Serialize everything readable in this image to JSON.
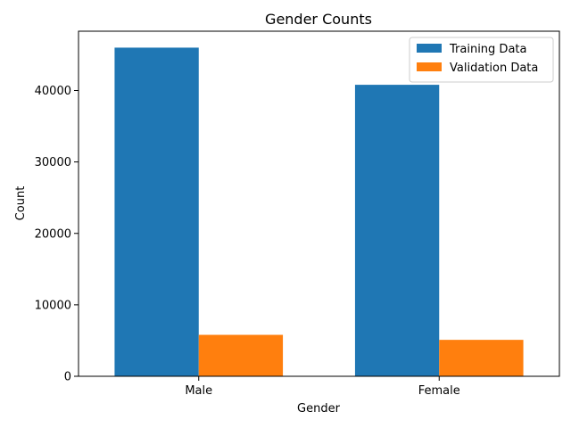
{
  "chart_data": {
    "type": "bar",
    "title": "Gender Counts",
    "xlabel": "Gender",
    "ylabel": "Count",
    "categories": [
      "Male",
      "Female"
    ],
    "series": [
      {
        "name": "Training Data",
        "color": "#1f77b4",
        "values": [
          46000,
          40800
        ]
      },
      {
        "name": "Validation Data",
        "color": "#ff7f0e",
        "values": [
          5800,
          5100
        ]
      }
    ],
    "ylim": [
      0,
      48300
    ],
    "yticks": [
      0,
      10000,
      20000,
      30000,
      40000
    ],
    "legend": "top-right",
    "grid": false
  }
}
